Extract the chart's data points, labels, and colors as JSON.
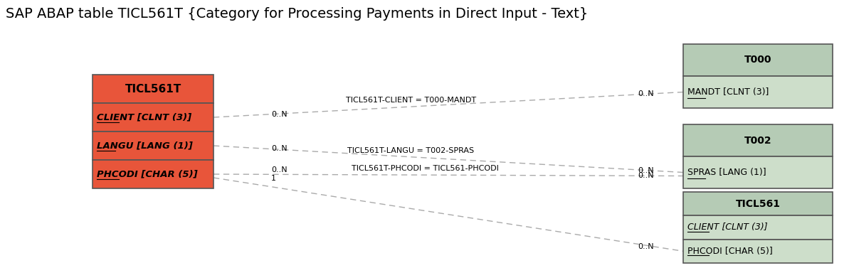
{
  "title": "SAP ABAP table TICL561T {Category for Processing Payments in Direct Input - Text}",
  "title_fontsize": 14,
  "background_color": "#ffffff",
  "main_table": {
    "name": "TICL561T",
    "header_color": "#e8553a",
    "row_color": "#e8553a",
    "border_color": "#555555",
    "rows": [
      {
        "text": "CLIENT [CLNT (3)]",
        "italic": true,
        "underline": true,
        "bold": true
      },
      {
        "text": "LANGU [LANG (1)]",
        "italic": true,
        "underline": true,
        "bold": true
      },
      {
        "text": "PHCODI [CHAR (5)]",
        "italic": true,
        "underline": true,
        "bold": true
      }
    ]
  },
  "right_tables": [
    {
      "name": "T000",
      "header_color": "#b5cbb5",
      "row_color": "#cddeca",
      "border_color": "#555555",
      "rows": [
        {
          "text": "MANDT [CLNT (3)]",
          "italic": false,
          "underline": true,
          "bold": false
        }
      ]
    },
    {
      "name": "T002",
      "header_color": "#b5cbb5",
      "row_color": "#cddeca",
      "border_color": "#555555",
      "rows": [
        {
          "text": "SPRAS [LANG (1)]",
          "italic": false,
          "underline": true,
          "bold": false
        }
      ]
    },
    {
      "name": "TICL561",
      "header_color": "#b5cbb5",
      "row_color": "#cddeca",
      "border_color": "#555555",
      "rows": [
        {
          "text": "CLIENT [CLNT (3)]",
          "italic": true,
          "underline": true,
          "bold": false
        },
        {
          "text": "PHCODI [CHAR (5)]",
          "italic": false,
          "underline": true,
          "bold": false
        }
      ]
    }
  ],
  "connections": [
    {
      "label": "TICL561T-CLIENT = T000-MANDT",
      "from_card": "0..N",
      "to_card": "0..N",
      "target_table": 0
    },
    {
      "label": "TICL561T-LANGU = T002-SPRAS",
      "from_card": "0..N",
      "to_card": "0..N",
      "target_table": 1
    },
    {
      "label": "TICL561T-PHCODI = TICL561-PHCODI",
      "from_card": "0..N\n1",
      "to_card": "0..N",
      "target_table": 2
    },
    {
      "label": "",
      "from_card": "",
      "to_card": "0..N",
      "target_table": 2
    }
  ]
}
